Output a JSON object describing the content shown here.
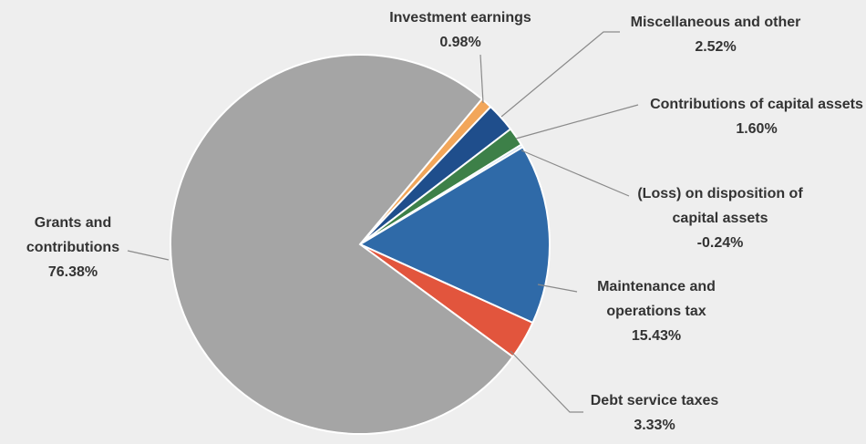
{
  "chart_data": {
    "type": "pie",
    "categories": [
      "Investment earnings",
      "Miscellaneous and other",
      "Contributions of capital assets",
      "(Loss) on disposition of capital assets",
      "Maintenance and operations tax",
      "Debt service taxes",
      "Grants and contributions"
    ],
    "values": [
      0.98,
      2.52,
      1.6,
      -0.24,
      15.43,
      3.33,
      76.38
    ],
    "value_labels": [
      "0.98%",
      "2.52%",
      "1.60%",
      "-0.24%",
      "15.43%",
      "3.33%",
      "76.38%"
    ],
    "colors": [
      "#f2a65a",
      "#1f4e8c",
      "#3d8048",
      "#bcd3ea",
      "#2f6aa8",
      "#e2553d",
      "#a5a5a5"
    ]
  }
}
